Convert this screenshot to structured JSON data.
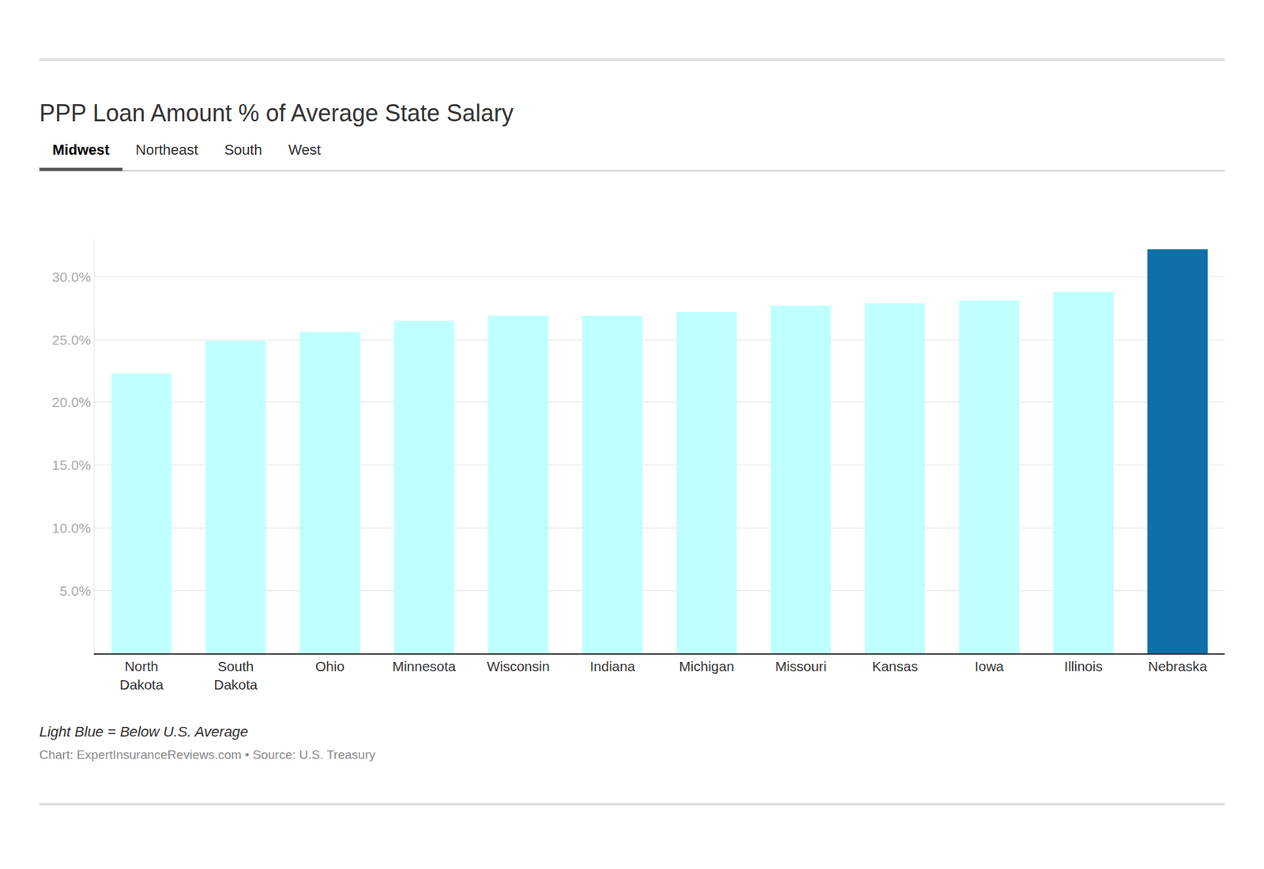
{
  "chart_data": {
    "type": "bar",
    "title": "PPP Loan Amount % of Average State Salary",
    "tabs": [
      "Midwest",
      "Northeast",
      "South",
      "West"
    ],
    "active_tab": "Midwest",
    "categories": [
      "North Dakota",
      "South Dakota",
      "Ohio",
      "Minnesota",
      "Wisconsin",
      "Indiana",
      "Michigan",
      "Missouri",
      "Kansas",
      "Iowa",
      "Illinois",
      "Nebraska"
    ],
    "values": [
      22.3,
      24.9,
      25.6,
      26.5,
      26.9,
      26.9,
      27.2,
      27.7,
      27.9,
      28.1,
      28.8,
      32.2
    ],
    "colors": [
      "#c0ffff",
      "#c0ffff",
      "#c0ffff",
      "#c0ffff",
      "#c0ffff",
      "#c0ffff",
      "#c0ffff",
      "#c0ffff",
      "#c0ffff",
      "#c0ffff",
      "#c0ffff",
      "#0f6fa8"
    ],
    "ylim": [
      0,
      33
    ],
    "yticks": [
      {
        "value": 5,
        "label": "5.0%"
      },
      {
        "value": 10,
        "label": "10.0%"
      },
      {
        "value": 15,
        "label": "15.0%"
      },
      {
        "value": 20,
        "label": "20.0%"
      },
      {
        "value": 25,
        "label": "25.0%"
      },
      {
        "value": 30,
        "label": "30.0%"
      }
    ],
    "grid": true,
    "note": "Light Blue = Below U.S. Average",
    "source": "Chart: ExpertInsuranceReviews.com • Source: U.S. Treasury"
  }
}
